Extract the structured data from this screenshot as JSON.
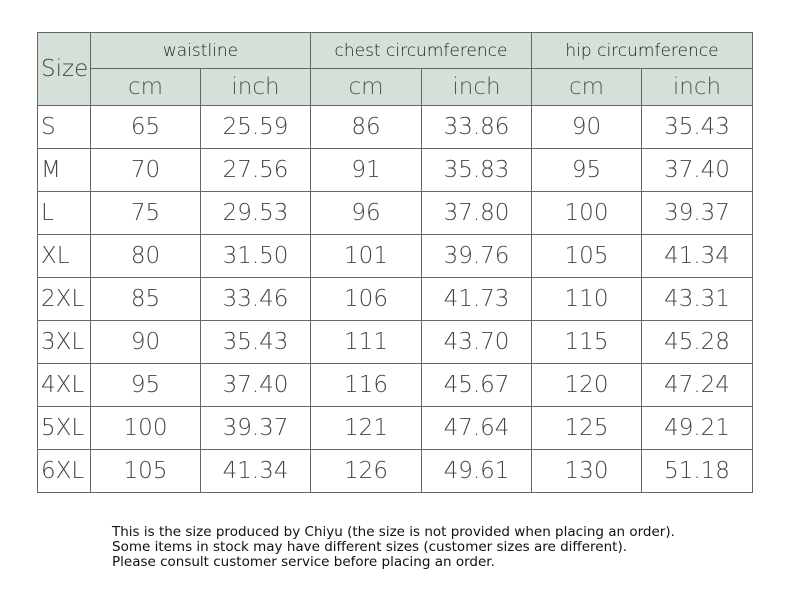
{
  "table": {
    "header": {
      "size": "Size",
      "groups": [
        "waistline",
        "chest circumference",
        "hip circumference"
      ],
      "units": [
        "cm",
        "inch",
        "cm",
        "inch",
        "cm",
        "inch"
      ]
    },
    "rows": [
      [
        "S",
        "65",
        "25.59",
        "86",
        "33.86",
        "90",
        "35.43"
      ],
      [
        "M",
        "70",
        "27.56",
        "91",
        "35.83",
        "95",
        "37.40"
      ],
      [
        "L",
        "75",
        "29.53",
        "96",
        "37.80",
        "100",
        "39.37"
      ],
      [
        "XL",
        "80",
        "31.50",
        "101",
        "39.76",
        "105",
        "41.34"
      ],
      [
        "2XL",
        "85",
        "33.46",
        "106",
        "41.73",
        "110",
        "43.31"
      ],
      [
        "3XL",
        "90",
        "35.43",
        "111",
        "43.70",
        "115",
        "45.28"
      ],
      [
        "4XL",
        "95",
        "37.40",
        "116",
        "45.67",
        "120",
        "47.24"
      ],
      [
        "5XL",
        "100",
        "39.37",
        "121",
        "47.64",
        "125",
        "49.21"
      ],
      [
        "6XL",
        "105",
        "41.34",
        "126",
        "49.61",
        "130",
        "51.18"
      ]
    ]
  },
  "notes": [
    "This is the size produced by Chiyu (the size is not provided when placing an order).",
    "Some items in stock may have different sizes (customer sizes are different).",
    "Please consult customer service before placing an order."
  ]
}
